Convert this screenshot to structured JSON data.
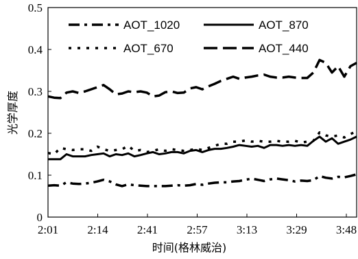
{
  "chart_data": {
    "type": "line",
    "title": "",
    "xlabel": "时间(格林威治)",
    "ylabel": "光学厚度",
    "x_tick_labels": [
      "2:01",
      "2:14",
      "2:41",
      "2:57",
      "3:13",
      "3:29",
      "3:48"
    ],
    "y_ticks": [
      "0",
      "0.1",
      "0.2",
      "0.3",
      "0.4",
      "0.5"
    ],
    "ylim": [
      0,
      0.5
    ],
    "grid": false,
    "legend_position": "top",
    "n_points": 51,
    "series": [
      {
        "name": "AOT_1020",
        "style": "dash-dot",
        "values": [
          0.075,
          0.076,
          0.075,
          0.083,
          0.08,
          0.079,
          0.08,
          0.082,
          0.085,
          0.089,
          0.085,
          0.078,
          0.074,
          0.078,
          0.076,
          0.075,
          0.074,
          0.074,
          0.074,
          0.074,
          0.075,
          0.076,
          0.075,
          0.076,
          0.079,
          0.077,
          0.08,
          0.082,
          0.083,
          0.083,
          0.085,
          0.086,
          0.089,
          0.092,
          0.089,
          0.086,
          0.09,
          0.092,
          0.09,
          0.088,
          0.085,
          0.087,
          0.086,
          0.088,
          0.098,
          0.094,
          0.092,
          0.096,
          0.095,
          0.098,
          0.102
        ]
      },
      {
        "name": "AOT_870",
        "style": "solid",
        "values": [
          0.138,
          0.138,
          0.138,
          0.15,
          0.145,
          0.145,
          0.145,
          0.148,
          0.15,
          0.152,
          0.145,
          0.15,
          0.148,
          0.152,
          0.145,
          0.148,
          0.152,
          0.155,
          0.15,
          0.152,
          0.155,
          0.155,
          0.152,
          0.158,
          0.16,
          0.155,
          0.16,
          0.163,
          0.163,
          0.165,
          0.168,
          0.172,
          0.17,
          0.168,
          0.17,
          0.165,
          0.172,
          0.172,
          0.17,
          0.172,
          0.17,
          0.172,
          0.17,
          0.182,
          0.192,
          0.18,
          0.188,
          0.175,
          0.18,
          0.185,
          0.192
        ]
      },
      {
        "name": "AOT_670",
        "style": "dotted",
        "values": [
          0.153,
          0.15,
          0.165,
          0.162,
          0.16,
          0.162,
          0.162,
          0.158,
          0.168,
          0.162,
          0.158,
          0.16,
          0.162,
          0.17,
          0.158,
          0.16,
          0.155,
          0.158,
          0.162,
          0.158,
          0.162,
          0.16,
          0.158,
          0.16,
          0.163,
          0.16,
          0.165,
          0.17,
          0.175,
          0.175,
          0.18,
          0.18,
          0.183,
          0.18,
          0.182,
          0.18,
          0.18,
          0.182,
          0.18,
          0.18,
          0.182,
          0.178,
          0.18,
          0.182,
          0.202,
          0.195,
          0.192,
          0.195,
          0.19,
          0.198,
          0.205
        ]
      },
      {
        "name": "AOT_440",
        "style": "long-dash",
        "values": [
          0.288,
          0.285,
          0.284,
          0.297,
          0.3,
          0.296,
          0.3,
          0.305,
          0.31,
          0.315,
          0.305,
          0.293,
          0.295,
          0.3,
          0.298,
          0.3,
          0.297,
          0.288,
          0.29,
          0.298,
          0.3,
          0.296,
          0.297,
          0.307,
          0.31,
          0.305,
          0.312,
          0.318,
          0.325,
          0.33,
          0.335,
          0.33,
          0.333,
          0.335,
          0.338,
          0.34,
          0.335,
          0.333,
          0.333,
          0.335,
          0.333,
          0.332,
          0.332,
          0.345,
          0.375,
          0.368,
          0.345,
          0.36,
          0.335,
          0.36,
          0.368
        ]
      }
    ]
  }
}
